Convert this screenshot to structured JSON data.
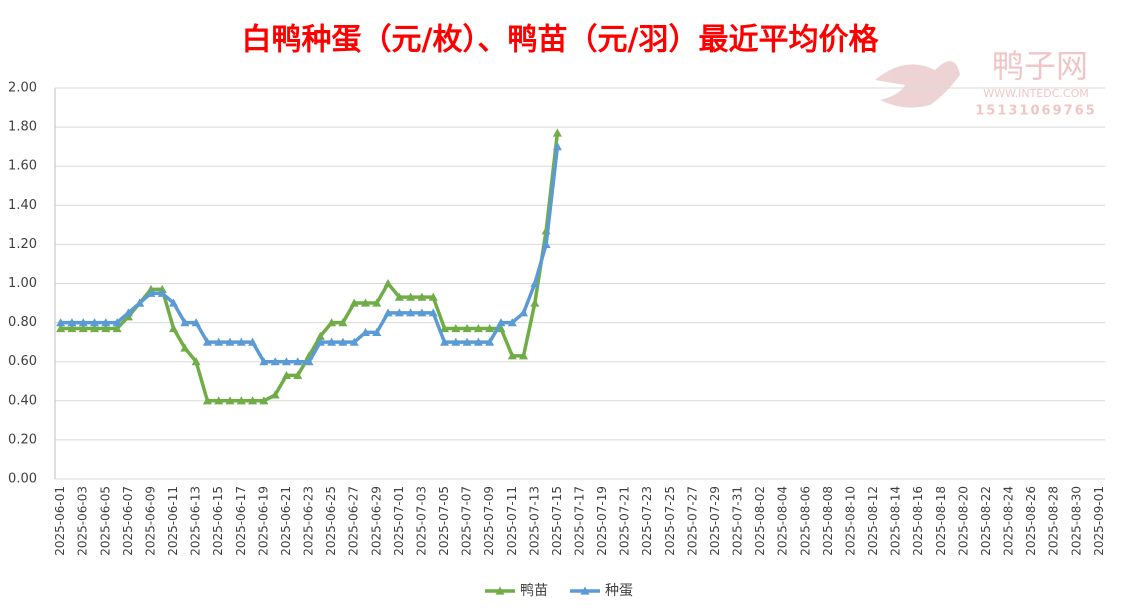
{
  "chart_data": {
    "type": "line",
    "title": "白鸭种蛋（元/枚）、鸭苗（元/羽）最近平均价格",
    "watermark": {
      "name": "鸭子网",
      "site": "WWW.INTEDC.COM",
      "phone": "15131069765"
    },
    "categories": [
      "2025-06-01",
      null,
      "2025-06-03",
      null,
      "2025-06-05",
      null,
      "2025-06-07",
      null,
      "2025-06-09",
      null,
      "2025-06-11",
      null,
      "2025-06-13",
      null,
      "2025-06-15",
      null,
      "2025-06-17",
      null,
      "2025-06-19",
      null,
      "2025-06-21",
      null,
      "2025-06-23",
      null,
      "2025-06-25",
      null,
      "2025-06-27",
      null,
      "2025-06-29",
      null,
      "2025-07-01",
      null,
      "2025-07-03",
      null,
      "2025-07-05",
      null,
      "2025-07-07",
      null,
      "2025-07-09",
      null,
      "2025-07-11",
      null,
      "2025-07-13",
      null,
      "2025-07-15",
      null,
      "2025-07-17",
      null,
      "2025-07-19",
      null,
      "2025-07-21",
      null,
      "2025-07-23",
      null,
      "2025-07-25",
      null,
      "2025-07-27",
      null,
      "2025-07-29",
      null,
      "2025-07-31",
      null,
      "2025-08-02",
      null,
      "2025-08-04",
      null,
      "2025-08-06",
      null,
      "2025-08-08",
      null,
      "2025-08-10",
      null,
      "2025-08-12",
      null,
      "2025-08-14",
      null,
      "2025-08-16",
      null,
      "2025-08-18",
      null,
      "2025-08-20",
      null,
      "2025-08-22",
      null,
      "2025-08-24",
      null,
      "2025-08-26",
      null,
      "2025-08-28",
      null,
      "2025-08-30",
      null,
      "2025-09-01"
    ],
    "series": [
      {
        "name": "鸭苗",
        "color": "#70ad47",
        "values": [
          0.77,
          0.77,
          0.77,
          0.77,
          0.77,
          0.77,
          0.83,
          0.9,
          0.97,
          0.97,
          0.77,
          0.67,
          0.6,
          0.4,
          0.4,
          0.4,
          0.4,
          0.4,
          0.4,
          0.43,
          0.53,
          0.53,
          0.63,
          0.73,
          0.8,
          0.8,
          0.9,
          0.9,
          0.9,
          1.0,
          0.93,
          0.93,
          0.93,
          0.93,
          0.77,
          0.77,
          0.77,
          0.77,
          0.77,
          0.77,
          0.63,
          0.63,
          0.9,
          1.27,
          1.77,
          null,
          null,
          null,
          null,
          null,
          null,
          null,
          null,
          null,
          null,
          null,
          null,
          null,
          null,
          null,
          null,
          null,
          null,
          null,
          null,
          null,
          null,
          null,
          null,
          null,
          null,
          null,
          null,
          null,
          null,
          null,
          null,
          null,
          null,
          null,
          null,
          null,
          null,
          null,
          null,
          null,
          null,
          null,
          null,
          null,
          null,
          null,
          null
        ]
      },
      {
        "name": "种蛋",
        "color": "#5b9bd5",
        "values": [
          0.8,
          0.8,
          0.8,
          0.8,
          0.8,
          0.8,
          0.85,
          0.9,
          0.95,
          0.95,
          0.9,
          0.8,
          0.8,
          0.7,
          0.7,
          0.7,
          0.7,
          0.7,
          0.6,
          0.6,
          0.6,
          0.6,
          0.6,
          0.7,
          0.7,
          0.7,
          0.7,
          0.75,
          0.75,
          0.85,
          0.85,
          0.85,
          0.85,
          0.85,
          0.7,
          0.7,
          0.7,
          0.7,
          0.7,
          0.8,
          0.8,
          0.85,
          1.0,
          1.2,
          1.7,
          null,
          null,
          null,
          null,
          null,
          null,
          null,
          null,
          null,
          null,
          null,
          null,
          null,
          null,
          null,
          null,
          null,
          null,
          null,
          null,
          null,
          null,
          null,
          null,
          null,
          null,
          null,
          null,
          null,
          null,
          null,
          null,
          null,
          null,
          null,
          null,
          null,
          null,
          null,
          null,
          null,
          null,
          null,
          null,
          null,
          null,
          null,
          null
        ]
      }
    ],
    "ylim": [
      0,
      2
    ],
    "yticks": [
      {
        "value": 0,
        "label": "0.00"
      },
      {
        "value": 0.2,
        "label": "0.20"
      },
      {
        "value": 0.4,
        "label": "0.40"
      },
      {
        "value": 0.6,
        "label": "0.60"
      },
      {
        "value": 0.8,
        "label": "0.80"
      },
      {
        "value": 1,
        "label": "1.00"
      },
      {
        "value": 1.2,
        "label": "1.20"
      },
      {
        "value": 1.4,
        "label": "1.40"
      },
      {
        "value": 1.6,
        "label": "1.60"
      },
      {
        "value": 1.8,
        "label": "1.80"
      },
      {
        "value": 2,
        "label": "2.00"
      }
    ],
    "grid": true,
    "legend": "bottom"
  }
}
